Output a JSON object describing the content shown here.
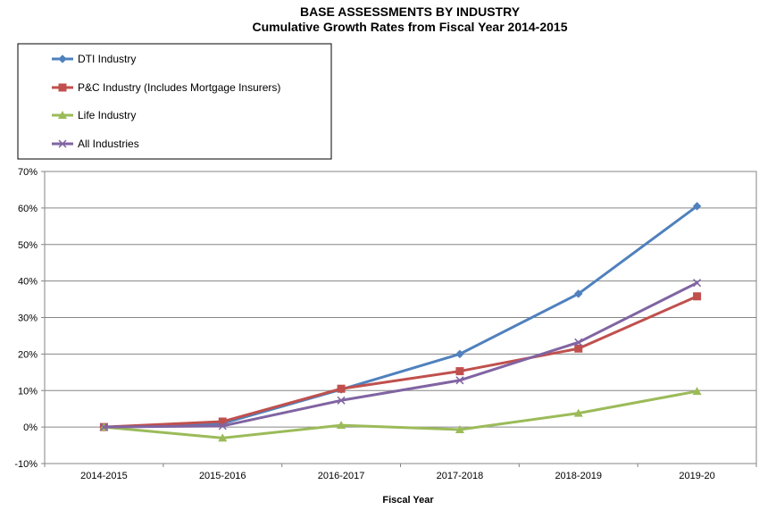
{
  "chart_data": {
    "type": "line",
    "title": "BASE ASSESSMENTS BY INDUSTRY",
    "subtitle": "Cumulative Growth Rates from Fiscal Year 2014-2015",
    "xlabel": "Fiscal Year",
    "ylabel": "",
    "categories": [
      "2014-2015",
      "2015-2016",
      "2016-2017",
      "2017-2018",
      "2018-2019",
      "2019-20"
    ],
    "ylim": [
      -10,
      70
    ],
    "yticks": [
      -10,
      0,
      10,
      20,
      30,
      40,
      50,
      60,
      70
    ],
    "ytick_labels": [
      "-10%",
      "0%",
      "10%",
      "20%",
      "30%",
      "40%",
      "50%",
      "60%",
      "70%"
    ],
    "grid": true,
    "legend_position": "top-left",
    "series": [
      {
        "name": "DTI Industry",
        "values": [
          0,
          1,
          10.3,
          20,
          36.5,
          60.5
        ],
        "color": "#4F81BD",
        "marker": "diamond"
      },
      {
        "name": "P&C Industry (Includes Mortgage Insurers)",
        "values": [
          0,
          1.5,
          10.5,
          15.3,
          21.5,
          35.8
        ],
        "color": "#C0504D",
        "marker": "square"
      },
      {
        "name": "Life Industry",
        "values": [
          0,
          -3,
          0.5,
          -0.7,
          3.8,
          9.8
        ],
        "color": "#9BBB59",
        "marker": "triangle"
      },
      {
        "name": "All Industries",
        "values": [
          0,
          0.3,
          7.3,
          12.8,
          23.2,
          39.5
        ],
        "color": "#8064A2",
        "marker": "x"
      }
    ]
  }
}
